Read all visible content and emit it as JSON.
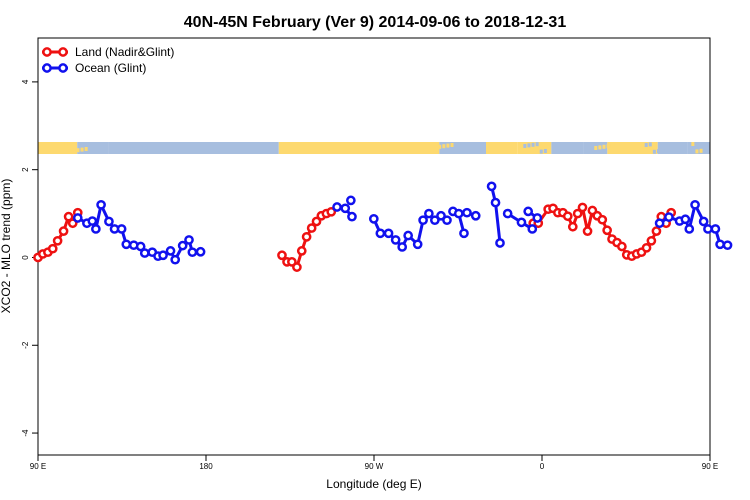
{
  "chart_data": {
    "type": "line",
    "title": "40N-45N February (Ver 9)   2014-09-06 to 2018-12-31",
    "xlabel": "Longitude (deg E)",
    "ylabel": "XCO2 - MLO trend (ppm)",
    "xlim": [
      90,
      450
    ],
    "ylim": [
      -4.5,
      5
    ],
    "x_ticks": [
      {
        "value": 90,
        "label": "90 E"
      },
      {
        "value": 180,
        "label": "180"
      },
      {
        "value": 270,
        "label": "90 W"
      },
      {
        "value": 360,
        "label": "0"
      },
      {
        "value": 450,
        "label": "90 E"
      },
      {
        "value": 540,
        "label": "180"
      }
    ],
    "y_ticks": [
      {
        "value": -4,
        "label": "-4"
      },
      {
        "value": -2,
        "label": "-2"
      },
      {
        "value": 0,
        "label": "0"
      },
      {
        "value": 2,
        "label": "2"
      },
      {
        "value": 4,
        "label": "4"
      }
    ],
    "legend_position": "top-left",
    "land_mask_colors": {
      "land": "#fdd96f",
      "ocean": "#a7bedf"
    },
    "series": [
      {
        "name": "Land (Nadir&Glint)",
        "color": "#ee1111",
        "segments": [
          [
            [
              90,
              0.0
            ],
            [
              92.6,
              0.08
            ],
            [
              95.3,
              0.12
            ],
            [
              97.9,
              0.2
            ],
            [
              100.5,
              0.38
            ],
            [
              103.7,
              0.6
            ],
            [
              106.4,
              0.93
            ],
            [
              108.6,
              0.78
            ],
            [
              111.3,
              1.02
            ]
          ],
          [
            [
              220.7,
              0.05
            ],
            [
              223.4,
              -0.1
            ],
            [
              226,
              -0.1
            ],
            [
              228.7,
              -0.22
            ],
            [
              231.3,
              0.15
            ],
            [
              233.9,
              0.47
            ],
            [
              236.6,
              0.67
            ],
            [
              239.2,
              0.82
            ],
            [
              241.8,
              0.95
            ],
            [
              244.5,
              1.0
            ],
            [
              247.1,
              1.04
            ]
          ],
          [
            [
              355.3,
              0.78
            ],
            [
              358,
              0.78
            ],
            [
              363.3,
              1.1
            ],
            [
              365.9,
              1.12
            ],
            [
              368.5,
              1.02
            ],
            [
              371.2,
              1.02
            ],
            [
              373.8,
              0.94
            ],
            [
              376.5,
              0.7
            ],
            [
              379.1,
              1.0
            ],
            [
              381.7,
              1.14
            ],
            [
              384.4,
              0.6
            ],
            [
              387,
              1.07
            ],
            [
              389.6,
              0.95
            ],
            [
              392.3,
              0.86
            ],
            [
              394.9,
              0.62
            ],
            [
              397.5,
              0.42
            ],
            [
              400.2,
              0.34
            ],
            [
              402.8,
              0.25
            ],
            [
              405.4,
              0.06
            ],
            [
              408.1,
              0.03
            ],
            [
              410.7,
              0.08
            ],
            [
              413.3,
              0.12
            ],
            [
              416,
              0.22
            ],
            [
              418.6,
              0.38
            ],
            [
              421.3,
              0.6
            ],
            [
              423.9,
              0.93
            ],
            [
              426.5,
              0.78
            ],
            [
              429.2,
              1.02
            ]
          ]
        ]
      },
      {
        "name": "Ocean (Glint)",
        "color": "#1111ee",
        "segments": [
          [
            [
              111.3,
              0.9
            ],
            [
              116.2,
              0.78
            ],
            [
              119.1,
              0.83
            ],
            [
              121,
              0.65
            ],
            [
              123.8,
              1.2
            ],
            [
              128,
              0.82
            ],
            [
              131,
              0.65
            ],
            [
              134.8,
              0.65
            ],
            [
              137.3,
              0.3
            ],
            [
              141.3,
              0.28
            ],
            [
              145,
              0.25
            ],
            [
              147.2,
              0.1
            ],
            [
              151.2,
              0.12
            ],
            [
              154.3,
              0.03
            ],
            [
              157,
              0.05
            ],
            [
              161,
              0.15
            ],
            [
              163.5,
              -0.05
            ],
            [
              167.5,
              0.27
            ],
            [
              170.9,
              0.4
            ],
            [
              172.7,
              0.12
            ],
            [
              177.1,
              0.13
            ]
          ],
          [
            [
              257.6,
              1.3
            ]
          ],
          [
            [
              250.2,
              1.15
            ],
            [
              254.6,
              1.12
            ],
            [
              258.2,
              0.93
            ]
          ],
          [
            [
              269.9,
              0.88
            ],
            [
              273.4,
              0.55
            ],
            [
              277.8,
              0.55
            ],
            [
              281.6,
              0.4
            ],
            [
              285.1,
              0.24
            ],
            [
              288.3,
              0.5
            ],
            [
              293.4,
              0.3
            ],
            [
              296.3,
              0.85
            ],
            [
              299.4,
              1.0
            ],
            [
              302.6,
              0.85
            ],
            [
              305.9,
              0.95
            ],
            [
              309.1,
              0.85
            ]
          ],
          [
            [
              312.3,
              1.05
            ],
            [
              315.4,
              1.0
            ],
            [
              318.2,
              0.55
            ]
          ],
          [
            [
              333,
              1.62
            ],
            [
              335.1,
              1.25
            ],
            [
              337.5,
              0.33
            ]
          ],
          [
            [
              352.6,
              1.05
            ],
            [
              357.5,
              0.9
            ]
          ],
          [
            [
              319.8,
              1.02
            ],
            [
              324.5,
              0.95
            ]
          ],
          [
            [
              341.6,
              1.0
            ],
            [
              349,
              0.8
            ],
            [
              354.8,
              0.65
            ]
          ],
          [
            [
              423,
              0.78
            ],
            [
              428,
              0.92
            ],
            [
              433.7,
              0.83
            ],
            [
              436.8,
              0.87
            ],
            [
              438.9,
              0.65
            ],
            [
              442,
              1.2
            ],
            [
              446.6,
              0.82
            ],
            [
              448.9,
              0.65
            ],
            [
              452.9,
              0.65
            ],
            [
              455.4,
              0.3
            ],
            [
              459.4,
              0.28
            ]
          ]
        ]
      }
    ]
  }
}
